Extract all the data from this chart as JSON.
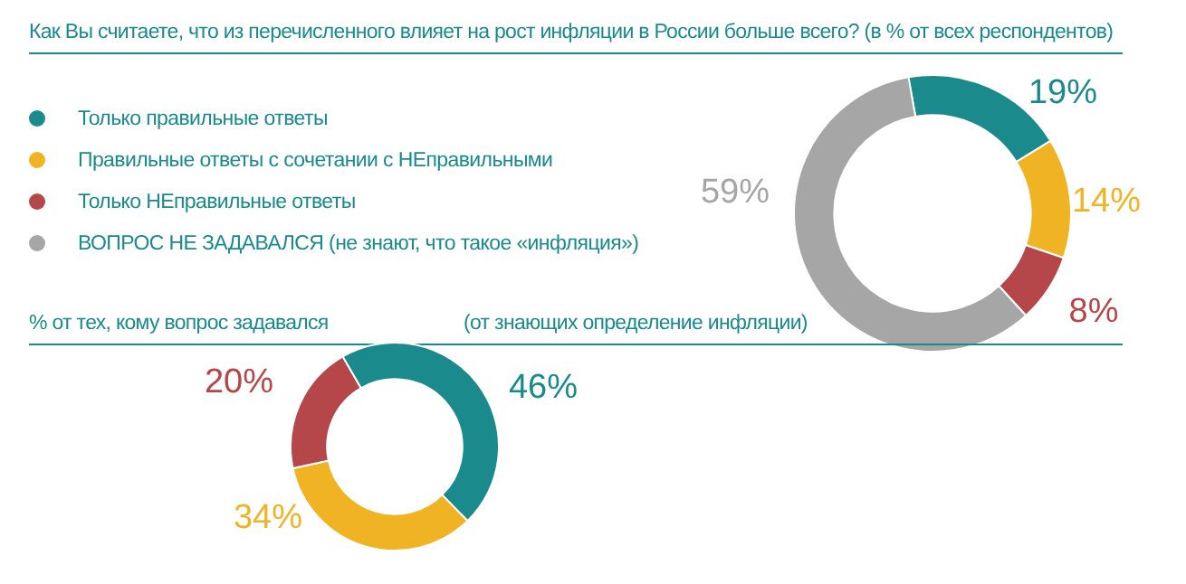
{
  "chart_data": [
    {
      "type": "donut",
      "title": "Как Вы считаете, что из перечисленного влияет на рост инфляции в России больше всего? (в % от всех респондентов)",
      "categories": [
        "Только правильные ответы",
        "Правильные ответы с сочетании с НЕправильными",
        "Только НЕправильные ответы",
        "ВОПРОС НЕ ЗАДАВАЛСЯ (не знают, что такое «инфляция»)"
      ],
      "values": [
        19,
        14,
        8,
        59
      ],
      "colors": [
        "#1b8a8c",
        "#f0b323",
        "#b5474b",
        "#a6a6a6"
      ],
      "value_labels": [
        "19%",
        "14%",
        "8%",
        "59%"
      ],
      "legend": "left"
    },
    {
      "type": "donut",
      "title": "% от тех, кому вопрос задавался",
      "subtitle": "(от знающих определение инфляции)",
      "categories": [
        null,
        null,
        null
      ],
      "values": [
        46,
        34,
        20
      ],
      "colors": [
        "#1b8a8c",
        "#f0b323",
        "#b5474b"
      ],
      "value_labels": [
        "46%",
        "34%",
        "20%"
      ]
    }
  ]
}
